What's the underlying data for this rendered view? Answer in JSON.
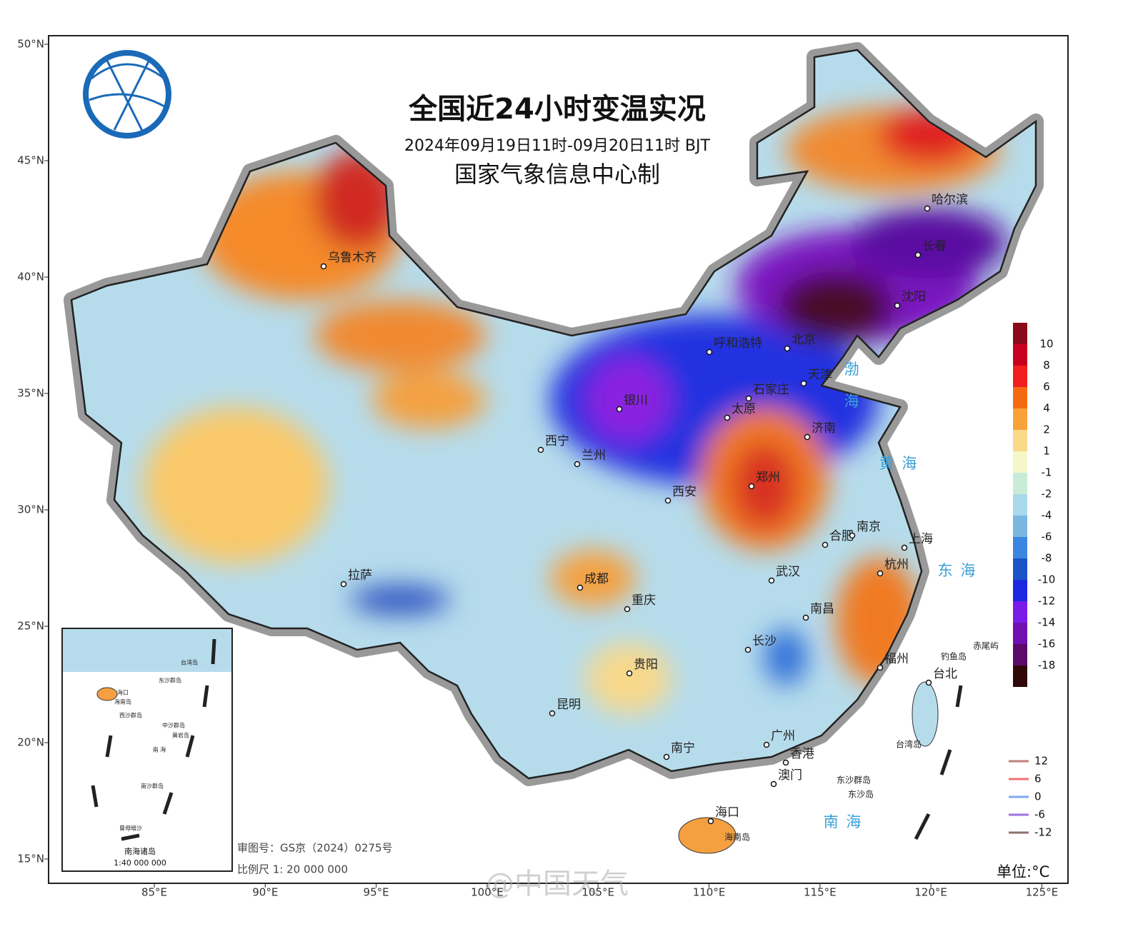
{
  "header": {
    "title": "全国近24小时变温实况",
    "subtitle": "2024年09月19日11时-09月20日11时 BJT",
    "producer": "国家气象信息中心制"
  },
  "axes": {
    "lat_labels": [
      "50°N",
      "45°N",
      "40°N",
      "35°N",
      "30°N",
      "25°N",
      "20°N",
      "15°N"
    ],
    "lon_labels": [
      "85°E",
      "90°E",
      "95°E",
      "100°E",
      "105°E",
      "110°E",
      "115°E",
      "120°E",
      "125°E"
    ]
  },
  "colorbar": {
    "unit": "单位:°C",
    "labels": [
      "10",
      "8",
      "6",
      "4",
      "2",
      "1",
      "-1",
      "-2",
      "-4",
      "-6",
      "-8",
      "-10",
      "-12",
      "-14",
      "-16",
      "-18"
    ],
    "colors": [
      "#8b0a1a",
      "#c8001e",
      "#f01e1e",
      "#f36a12",
      "#f9a13a",
      "#fbd98a",
      "#f5f7c8",
      "#c8ecd8",
      "#a8d8ea",
      "#7ab6e0",
      "#3a86e0",
      "#1a54c8",
      "#1c28e0",
      "#7a1ce8",
      "#7010b0",
      "#5c0a6a",
      "#300808"
    ]
  },
  "contour_legend": {
    "labels": [
      "12",
      "6",
      "0",
      "-6",
      "-12"
    ],
    "colors": [
      "#c08080",
      "#f07070",
      "#80a8f0",
      "#a070e0",
      "#907070"
    ]
  },
  "cities": [
    "乌鲁木齐",
    "哈尔滨",
    "长春",
    "沈阳",
    "呼和浩特",
    "北京",
    "天津",
    "石家庄",
    "太原",
    "济南",
    "银川",
    "西宁",
    "兰州",
    "西安",
    "郑州",
    "合肥",
    "南京",
    "上海",
    "拉萨",
    "成都",
    "重庆",
    "武汉",
    "杭州",
    "南昌",
    "长沙",
    "福州",
    "贵阳",
    "昆明",
    "台北",
    "广州",
    "南宁",
    "香港",
    "澳门",
    "海口"
  ],
  "seas": [
    "渤",
    "海",
    "黄  海",
    "东  海",
    "南  海"
  ],
  "islands": [
    "钓鱼岛",
    "赤尾屿",
    "台湾岛",
    "东沙群岛",
    "东沙岛",
    "海南岛"
  ],
  "inset": {
    "labels": [
      "台湾岛",
      "海口",
      "海南岛",
      "东沙群岛",
      "西沙群岛",
      "中沙群岛",
      "黄岩岛",
      "南  海",
      "南沙群岛",
      "曾母暗沙"
    ],
    "title": "南海诸岛",
    "scale": "1:40 000 000"
  },
  "footer": {
    "approval": "审图号：GS京（2024）0275号",
    "scale": "比例尺 1: 20 000 000",
    "watermark": "@中国天气"
  }
}
